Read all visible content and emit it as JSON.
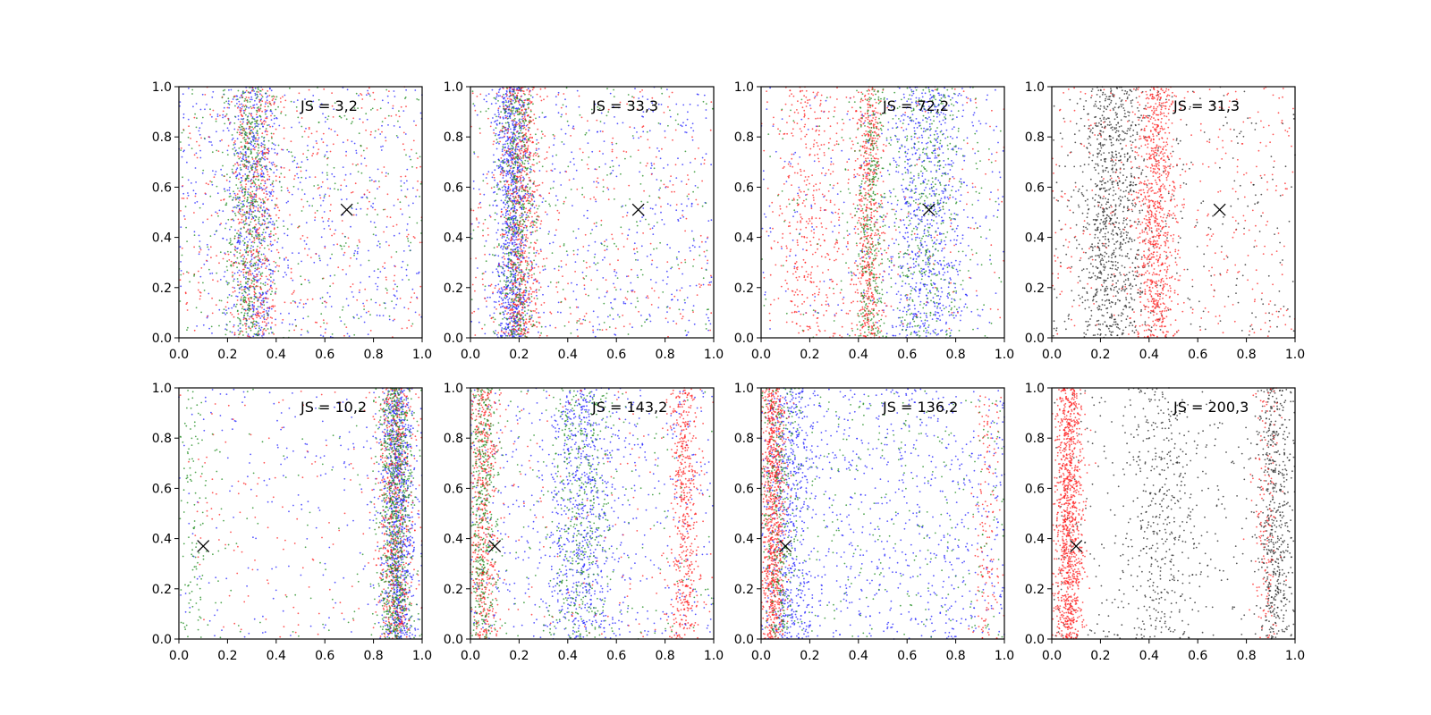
{
  "chart_data": [
    {
      "type": "scatter",
      "annotation": "JS = 3,2",
      "xlim": [
        0,
        1
      ],
      "ylim": [
        0,
        1
      ],
      "xticks": [
        "0.0",
        "0.2",
        "0.4",
        "0.6",
        "0.8",
        "1.0"
      ],
      "yticks": [
        "0.0",
        "0.2",
        "0.4",
        "0.6",
        "0.8",
        "1.0"
      ],
      "marker": {
        "symbol": "x",
        "x": 0.69,
        "y": 0.51
      },
      "series": [
        {
          "color": "#1f1fff",
          "clusters": [
            [
              0.31,
              0.05,
              500
            ],
            [
              0.5,
              0.3,
              500
            ]
          ]
        },
        {
          "color": "#ff1f1f",
          "clusters": [
            [
              0.31,
              0.05,
              450
            ],
            [
              0.5,
              0.3,
              400
            ]
          ]
        },
        {
          "color": "#1a8a1a",
          "clusters": [
            [
              0.29,
              0.045,
              500
            ],
            [
              0.5,
              0.3,
              300
            ]
          ]
        }
      ]
    },
    {
      "type": "scatter",
      "annotation": "JS = 33,3",
      "xlim": [
        0,
        1
      ],
      "ylim": [
        0,
        1
      ],
      "xticks": [
        "0.0",
        "0.2",
        "0.4",
        "0.6",
        "0.8",
        "1.0"
      ],
      "yticks": [
        "0.0",
        "0.2",
        "0.4",
        "0.6",
        "0.8",
        "1.0"
      ],
      "marker": {
        "symbol": "x",
        "x": 0.69,
        "y": 0.51
      },
      "series": [
        {
          "color": "#1f1fff",
          "clusters": [
            [
              0.17,
              0.035,
              900
            ],
            [
              0.55,
              0.28,
              450
            ]
          ]
        },
        {
          "color": "#ff1f1f",
          "clusters": [
            [
              0.21,
              0.04,
              650
            ],
            [
              0.55,
              0.28,
              350
            ]
          ]
        },
        {
          "color": "#1a8a1a",
          "clusters": [
            [
              0.19,
              0.04,
              500
            ],
            [
              0.55,
              0.28,
              250
            ]
          ]
        }
      ]
    },
    {
      "type": "scatter",
      "annotation": "JS = 72,2",
      "xlim": [
        0,
        1
      ],
      "ylim": [
        0,
        1
      ],
      "xticks": [
        "0.0",
        "0.2",
        "0.4",
        "0.6",
        "0.8",
        "1.0"
      ],
      "yticks": [
        "0.0",
        "0.2",
        "0.4",
        "0.6",
        "0.8",
        "1.0"
      ],
      "marker": {
        "symbol": "x",
        "x": 0.69,
        "y": 0.51
      },
      "series": [
        {
          "color": "#1f1fff",
          "clusters": [
            [
              0.68,
              0.08,
              700
            ],
            [
              0.5,
              0.3,
              250
            ]
          ]
        },
        {
          "color": "#ff1f1f",
          "clusters": [
            [
              0.44,
              0.03,
              550
            ],
            [
              0.2,
              0.08,
              350
            ],
            [
              0.5,
              0.3,
              200
            ]
          ]
        },
        {
          "color": "#1a8a1a",
          "clusters": [
            [
              0.45,
              0.03,
              350
            ],
            [
              0.68,
              0.08,
              400
            ],
            [
              0.5,
              0.3,
              150
            ]
          ]
        }
      ]
    },
    {
      "type": "scatter",
      "annotation": "JS = 31,3",
      "xlim": [
        0,
        1
      ],
      "ylim": [
        0,
        1
      ],
      "xticks": [
        "0.0",
        "0.2",
        "0.4",
        "0.6",
        "0.8",
        "1.0"
      ],
      "yticks": [
        "0.0",
        "0.2",
        "0.4",
        "0.6",
        "0.8",
        "1.0"
      ],
      "marker": {
        "symbol": "x",
        "x": 0.69,
        "y": 0.51
      },
      "series": [
        {
          "color": "#222222",
          "clusters": [
            [
              0.25,
              0.07,
              900
            ],
            [
              0.55,
              0.25,
              300
            ]
          ]
        },
        {
          "color": "#ff1f1f",
          "clusters": [
            [
              0.43,
              0.04,
              800
            ],
            [
              0.55,
              0.25,
              400
            ]
          ]
        }
      ]
    },
    {
      "type": "scatter",
      "annotation": "JS = 10,2",
      "xlim": [
        0,
        1
      ],
      "ylim": [
        0,
        1
      ],
      "xticks": [
        "0.0",
        "0.2",
        "0.4",
        "0.6",
        "0.8",
        "1.0"
      ],
      "yticks": [
        "0.0",
        "0.2",
        "0.4",
        "0.6",
        "0.8",
        "1.0"
      ],
      "marker": {
        "symbol": "x",
        "x": 0.1,
        "y": 0.37
      },
      "series": [
        {
          "color": "#1f1fff",
          "clusters": [
            [
              0.9,
              0.035,
              900
            ],
            [
              0.45,
              0.3,
              200
            ]
          ]
        },
        {
          "color": "#ff1f1f",
          "clusters": [
            [
              0.89,
              0.035,
              600
            ],
            [
              0.45,
              0.3,
              150
            ]
          ]
        },
        {
          "color": "#1a8a1a",
          "clusters": [
            [
              0.89,
              0.035,
              800
            ],
            [
              0.05,
              0.03,
              100
            ],
            [
              0.45,
              0.3,
              100
            ]
          ]
        }
      ]
    },
    {
      "type": "scatter",
      "annotation": "JS = 143,2",
      "xlim": [
        0,
        1
      ],
      "ylim": [
        0,
        1
      ],
      "xticks": [
        "0.0",
        "0.2",
        "0.4",
        "0.6",
        "0.8",
        "1.0"
      ],
      "yticks": [
        "0.0",
        "0.2",
        "0.4",
        "0.6",
        "0.8",
        "1.0"
      ],
      "marker": {
        "symbol": "x",
        "x": 0.1,
        "y": 0.37
      },
      "series": [
        {
          "color": "#1f1fff",
          "clusters": [
            [
              0.45,
              0.07,
              600
            ],
            [
              0.5,
              0.3,
              500
            ]
          ]
        },
        {
          "color": "#ff1f1f",
          "clusters": [
            [
              0.05,
              0.03,
              500
            ],
            [
              0.88,
              0.03,
              500
            ],
            [
              0.5,
              0.3,
              150
            ]
          ]
        },
        {
          "color": "#1a8a1a",
          "clusters": [
            [
              0.05,
              0.03,
              400
            ],
            [
              0.45,
              0.06,
              400
            ],
            [
              0.5,
              0.3,
              150
            ]
          ]
        }
      ]
    },
    {
      "type": "scatter",
      "annotation": "JS = 136,2",
      "xlim": [
        0,
        1
      ],
      "ylim": [
        0,
        1
      ],
      "xticks": [
        "0.0",
        "0.2",
        "0.4",
        "0.6",
        "0.8",
        "1.0"
      ],
      "yticks": [
        "0.0",
        "0.2",
        "0.4",
        "0.6",
        "0.8",
        "1.0"
      ],
      "marker": {
        "symbol": "x",
        "x": 0.1,
        "y": 0.37
      },
      "series": [
        {
          "color": "#1f1fff",
          "clusters": [
            [
              0.12,
              0.05,
              500
            ],
            [
              0.5,
              0.3,
              800
            ]
          ]
        },
        {
          "color": "#ff1f1f",
          "clusters": [
            [
              0.05,
              0.025,
              900
            ],
            [
              0.93,
              0.03,
              150
            ]
          ]
        },
        {
          "color": "#1a8a1a",
          "clusters": [
            [
              0.08,
              0.04,
              300
            ],
            [
              0.5,
              0.3,
              300
            ]
          ]
        }
      ]
    },
    {
      "type": "scatter",
      "annotation": "JS = 200,3",
      "xlim": [
        0,
        1
      ],
      "ylim": [
        0,
        1
      ],
      "xticks": [
        "0.0",
        "0.2",
        "0.4",
        "0.6",
        "0.8",
        "1.0"
      ],
      "yticks": [
        "0.0",
        "0.2",
        "0.4",
        "0.6",
        "0.8",
        "1.0"
      ],
      "marker": {
        "symbol": "x",
        "x": 0.1,
        "y": 0.37
      },
      "series": [
        {
          "color": "#222222",
          "clusters": [
            [
              0.92,
              0.035,
              500
            ],
            [
              0.45,
              0.08,
              400
            ],
            [
              0.5,
              0.3,
              300
            ]
          ]
        },
        {
          "color": "#ff1f1f",
          "clusters": [
            [
              0.07,
              0.03,
              1100
            ],
            [
              0.88,
              0.03,
              150
            ]
          ]
        }
      ]
    }
  ]
}
